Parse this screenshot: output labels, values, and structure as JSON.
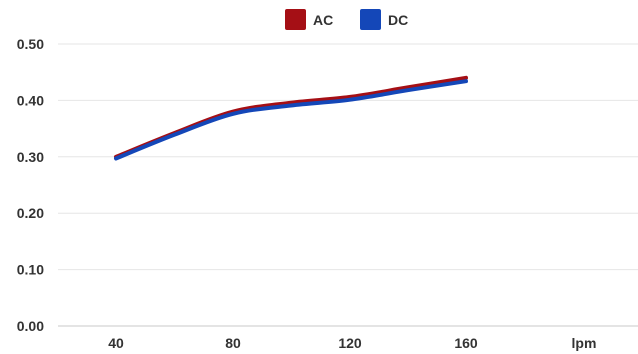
{
  "chart_data": {
    "type": "line",
    "x": [
      40,
      60,
      80,
      100,
      120,
      140,
      160
    ],
    "series": [
      {
        "name": "AC",
        "color": "#a50f15",
        "values": [
          0.3,
          0.342,
          0.38,
          0.396,
          0.406,
          0.423,
          0.44
        ]
      },
      {
        "name": "DC",
        "color": "#1447b8",
        "values": [
          0.297,
          0.339,
          0.376,
          0.391,
          0.401,
          0.418,
          0.434
        ]
      }
    ],
    "x_tick_labels": [
      "40",
      "80",
      "120",
      "160",
      "lpm"
    ],
    "y_tick_labels": [
      "0.00",
      "0.10",
      "0.20",
      "0.30",
      "0.40",
      "0.50"
    ],
    "xlabel": "",
    "ylabel": "",
    "ylim": [
      0,
      0.5
    ],
    "grid": true,
    "legend_position": "top-center"
  }
}
